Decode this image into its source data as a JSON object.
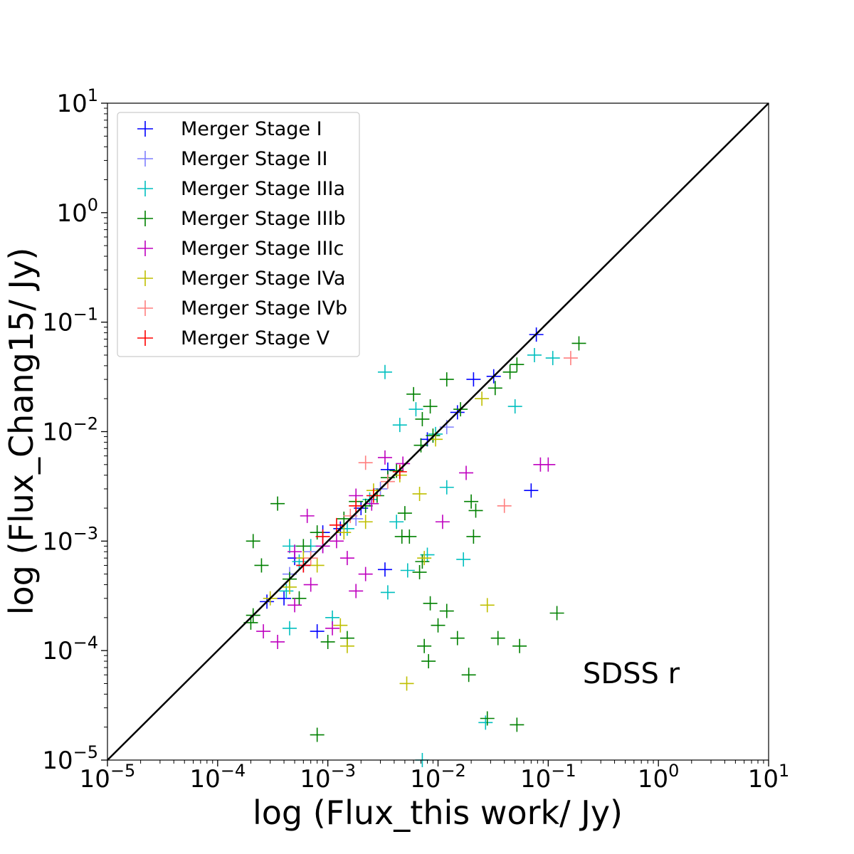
{
  "chart_data": {
    "type": "scatter",
    "xlabel": "log (Flux_this work/ Jy)",
    "ylabel": "log (Flux_Chang15/ Jy)",
    "annotation": "SDSS r",
    "x_scale": "log",
    "y_scale": "log",
    "xlim": [
      1e-05,
      10
    ],
    "ylim": [
      1e-05,
      10
    ],
    "x_tick_labels": [
      {
        "base": "10",
        "exp": "−5"
      },
      {
        "base": "10",
        "exp": "−4"
      },
      {
        "base": "10",
        "exp": "−3"
      },
      {
        "base": "10",
        "exp": "−2"
      },
      {
        "base": "10",
        "exp": "−1"
      },
      {
        "base": "10",
        "exp": "0"
      },
      {
        "base": "10",
        "exp": "1"
      }
    ],
    "y_tick_labels": [
      {
        "base": "10",
        "exp": "−5"
      },
      {
        "base": "10",
        "exp": "−4"
      },
      {
        "base": "10",
        "exp": "−3"
      },
      {
        "base": "10",
        "exp": "−2"
      },
      {
        "base": "10",
        "exp": "−1"
      },
      {
        "base": "10",
        "exp": "0"
      },
      {
        "base": "10",
        "exp": "1"
      }
    ],
    "grid": false,
    "legend_position": "top-left",
    "reference_line": {
      "label": "",
      "type": "y=x",
      "color": "#000000"
    },
    "series": [
      {
        "name": "Merger Stage I",
        "color": "#0000ff",
        "points": [
          [
            0.078,
            0.077
          ],
          [
            0.032,
            0.032
          ],
          [
            0.021,
            0.03
          ],
          [
            0.0035,
            0.0045
          ],
          [
            0.0009,
            0.0012
          ],
          [
            0.0006,
            0.0006
          ],
          [
            0.0004,
            0.0003
          ],
          [
            0.0008,
            0.00015
          ],
          [
            0.0033,
            0.00055
          ],
          [
            0.0005,
            0.0007
          ],
          [
            0.07,
            0.0029
          ],
          [
            0.00028,
            0.00028
          ],
          [
            0.0013,
            0.0013
          ],
          [
            0.002,
            0.002
          ],
          [
            0.008,
            0.0085
          ],
          [
            0.015,
            0.015
          ]
        ]
      },
      {
        "name": "Merger Stage II",
        "color": "#7f7fff",
        "points": [
          [
            0.00045,
            0.0005
          ],
          [
            0.0009,
            0.0009
          ],
          [
            0.003,
            0.003
          ],
          [
            0.012,
            0.011
          ],
          [
            0.0007,
            0.0008
          ],
          [
            0.0018,
            0.0016
          ]
        ]
      },
      {
        "name": "Merger Stage IIIa",
        "color": "#00bfbf",
        "points": [
          [
            0.0033,
            0.035
          ],
          [
            0.075,
            0.05
          ],
          [
            0.11,
            0.047
          ],
          [
            0.05,
            0.017
          ],
          [
            0.012,
            0.0031
          ],
          [
            0.017,
            0.00068
          ],
          [
            0.008,
            0.00075
          ],
          [
            0.0035,
            0.00034
          ],
          [
            0.0011,
            0.0002
          ],
          [
            0.00045,
            0.00016
          ],
          [
            0.0072,
            1e-05
          ],
          [
            0.027,
            2.2e-05
          ],
          [
            0.0045,
            0.0115
          ],
          [
            0.0063,
            0.016
          ],
          [
            0.0042,
            0.0015
          ],
          [
            0.0053,
            0.00054
          ],
          [
            0.00055,
            0.00065
          ],
          [
            0.00042,
            0.00035
          ],
          [
            0.0007,
            0.0009
          ],
          [
            0.0015,
            0.0013
          ],
          [
            0.0024,
            0.0024
          ],
          [
            0.00045,
            0.0009
          ],
          [
            0.0095,
            0.0095
          ]
        ]
      },
      {
        "name": "Merger Stage IIIb",
        "color": "#008000",
        "points": [
          [
            0.19,
            0.064
          ],
          [
            0.052,
            0.041
          ],
          [
            0.045,
            0.035
          ],
          [
            0.012,
            0.03
          ],
          [
            0.006,
            0.022
          ],
          [
            0.0085,
            0.017
          ],
          [
            0.0072,
            0.013
          ],
          [
            0.016,
            0.016
          ],
          [
            0.033,
            0.025
          ],
          [
            0.00035,
            0.0022
          ],
          [
            0.00021,
            0.001
          ],
          [
            0.00025,
            0.0006
          ],
          [
            0.00021,
            0.00021
          ],
          [
            0.0002,
            0.00018
          ],
          [
            0.0008,
            1.7e-05
          ],
          [
            0.0015,
            0.00013
          ],
          [
            0.001,
            0.00012
          ],
          [
            0.0047,
            0.0011
          ],
          [
            0.0055,
            0.0011
          ],
          [
            0.0068,
            0.00052
          ],
          [
            0.0072,
            0.00065
          ],
          [
            0.0075,
            0.00011
          ],
          [
            0.0082,
            8e-05
          ],
          [
            0.0085,
            0.00027
          ],
          [
            0.01,
            0.00017
          ],
          [
            0.012,
            0.00023
          ],
          [
            0.015,
            0.00013
          ],
          [
            0.019,
            6e-05
          ],
          [
            0.02,
            0.0023
          ],
          [
            0.022,
            0.0019
          ],
          [
            0.021,
            0.0011
          ],
          [
            0.035,
            0.00013
          ],
          [
            0.055,
            0.00011
          ],
          [
            0.052,
            2.1e-05
          ],
          [
            0.028,
            2.4e-05
          ],
          [
            0.12,
            0.00022
          ],
          [
            0.005,
            0.0018
          ],
          [
            0.0028,
            0.0026
          ],
          [
            0.0018,
            0.0023
          ],
          [
            0.0008,
            0.0012
          ],
          [
            0.0006,
            0.0009
          ],
          [
            0.00045,
            0.00045
          ],
          [
            0.0014,
            0.0016
          ],
          [
            0.0022,
            0.0021
          ],
          [
            0.0042,
            0.0044
          ],
          [
            0.007,
            0.0075
          ],
          [
            0.009,
            0.0092
          ],
          [
            0.0035,
            0.0038
          ],
          [
            0.00055,
            0.0003
          ]
        ]
      },
      {
        "name": "Merger Stage IIIc",
        "color": "#bf00bf",
        "points": [
          [
            0.085,
            0.005
          ],
          [
            0.1,
            0.005
          ],
          [
            0.018,
            0.0042
          ],
          [
            0.0033,
            0.0058
          ],
          [
            0.0018,
            0.0026
          ],
          [
            0.00065,
            0.0017
          ],
          [
            0.00026,
            0.00015
          ],
          [
            0.00035,
            0.00012
          ],
          [
            0.0011,
            0.00016
          ],
          [
            0.0018,
            0.00035
          ],
          [
            0.0015,
            0.0007
          ],
          [
            0.0022,
            0.0005
          ],
          [
            0.011,
            0.0015
          ],
          [
            0.0048,
            0.0051
          ],
          [
            0.0007,
            0.0004
          ],
          [
            0.0005,
            0.0008
          ],
          [
            0.0012,
            0.001
          ],
          [
            0.0025,
            0.0022
          ],
          [
            0.0009,
            0.0009
          ],
          [
            0.0005,
            0.00026
          ]
        ]
      },
      {
        "name": "Merger Stage IVa",
        "color": "#bfbf00",
        "points": [
          [
            0.028,
            0.00026
          ],
          [
            0.0052,
            5e-05
          ],
          [
            0.0015,
            0.00011
          ],
          [
            0.0013,
            0.00017
          ],
          [
            0.0068,
            0.0027
          ],
          [
            0.0075,
            0.0007
          ],
          [
            0.025,
            0.02
          ],
          [
            0.0095,
            0.0085
          ],
          [
            0.0045,
            0.004
          ],
          [
            0.0022,
            0.0015
          ],
          [
            0.0008,
            0.0006
          ],
          [
            0.0003,
            0.0003
          ],
          [
            0.0014,
            0.0012
          ],
          [
            0.0026,
            0.0029
          ],
          [
            0.0006,
            0.0007
          ],
          [
            0.00045,
            0.00038
          ]
        ]
      },
      {
        "name": "Merger Stage IVb",
        "color": "#ff7f7f",
        "points": [
          [
            0.16,
            0.047
          ],
          [
            0.04,
            0.0021
          ],
          [
            0.0022,
            0.0052
          ],
          [
            0.0007,
            0.0007
          ],
          [
            0.0016,
            0.0017
          ],
          [
            0.0035,
            0.0035
          ]
        ]
      },
      {
        "name": "Merger Stage V",
        "color": "#ff0000",
        "points": [
          [
            0.0018,
            0.0021
          ],
          [
            0.0009,
            0.0011
          ],
          [
            0.0026,
            0.0026
          ],
          [
            0.0006,
            0.0006
          ],
          [
            0.0045,
            0.0043
          ],
          [
            0.0012,
            0.0014
          ]
        ]
      }
    ]
  }
}
